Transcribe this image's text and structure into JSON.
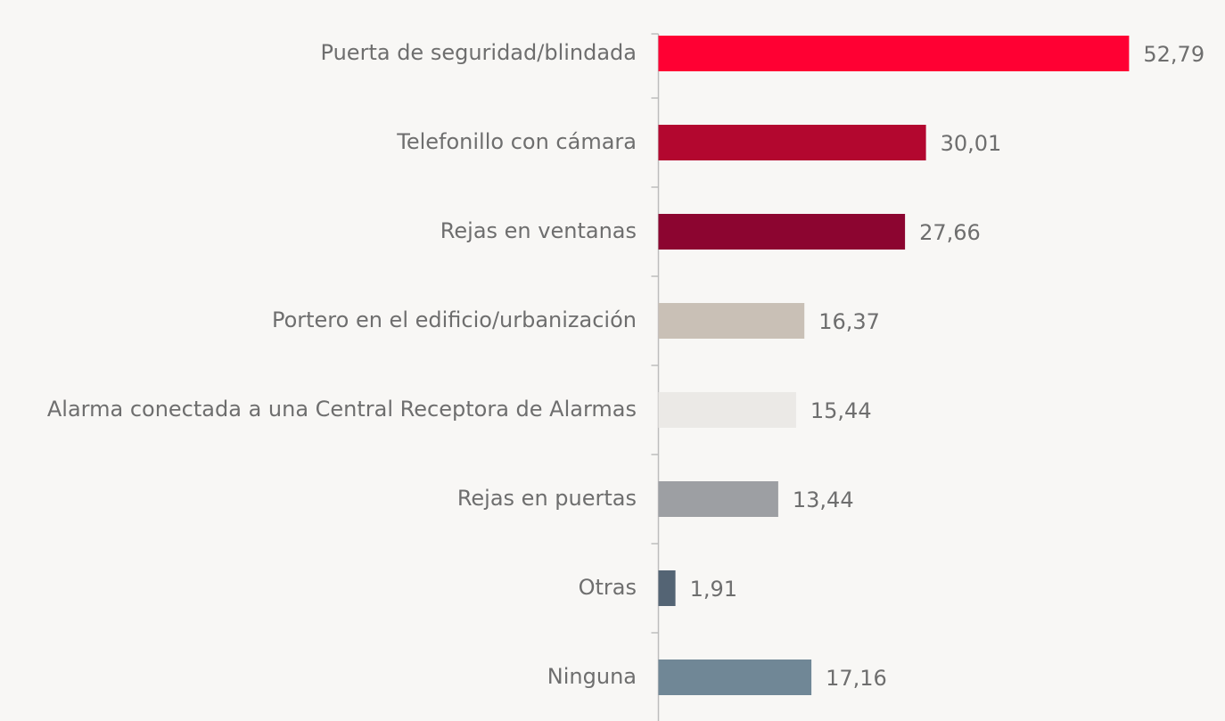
{
  "chart_data": {
    "type": "hbar",
    "categories": [
      "Puerta de seguridad/blindada",
      "Telefonillo con cámara",
      "Rejas en ventanas",
      "Portero en el edificio/urbanización",
      "Alarma conectada a una Central Receptora de Alarmas",
      "Rejas en puertas",
      "Otras",
      "Ninguna"
    ],
    "values": [
      52.79,
      30.01,
      27.66,
      16.37,
      15.44,
      13.44,
      1.91,
      17.16
    ],
    "value_labels": [
      "52,79",
      "30,01",
      "27,66",
      "16,37",
      "15,44",
      "13,44",
      "1,91",
      "17,16"
    ],
    "colors": [
      "#ff0033",
      "#b3072f",
      "#8c0530",
      "#c9c0b6",
      "#ebe9e6",
      "#9d9fa3",
      "#546474",
      "#708796"
    ]
  }
}
